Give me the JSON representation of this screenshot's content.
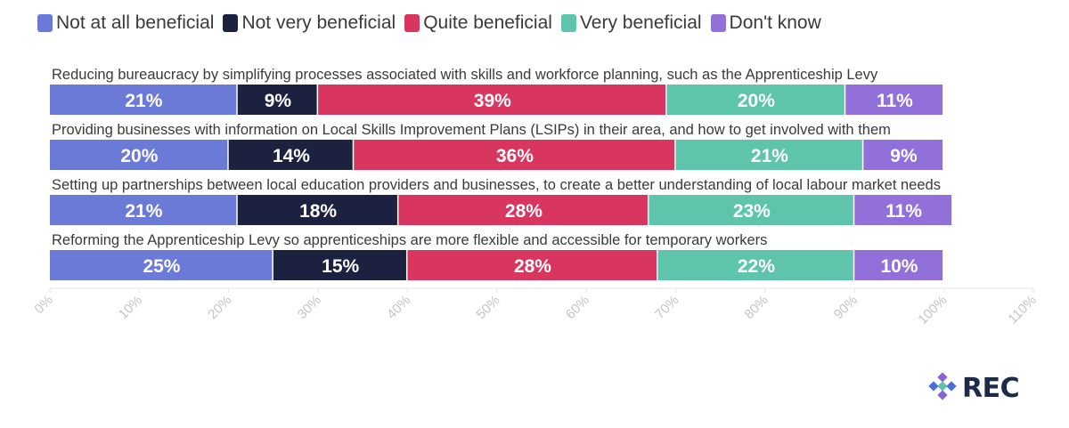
{
  "chart_data": {
    "type": "bar",
    "orientation": "horizontal",
    "stacked": true,
    "categories": [
      "Reducing bureaucracy by simplifying processes associated with skills and workforce planning, such as the Apprenticeship Levy",
      "Providing businesses with information on Local Skills Improvement Plans (LSIPs) in their area, and how to get involved with them",
      "Setting up partnerships between local education providers and businesses, to create a better understanding of local labour market needs",
      "Reforming the Apprenticeship Levy so apprenticeships are more flexible and accessible for temporary workers"
    ],
    "series": [
      {
        "name": "Not at all beneficial",
        "color": "#6b7ad6",
        "values": [
          21,
          20,
          21,
          25
        ]
      },
      {
        "name": "Not very beneficial",
        "color": "#1c2140",
        "values": [
          9,
          14,
          18,
          15
        ]
      },
      {
        "name": "Quite beneficial",
        "color": "#d9365f",
        "values": [
          39,
          36,
          28,
          28
        ]
      },
      {
        "name": "Very beneficial",
        "color": "#5ec4ac",
        "values": [
          20,
          21,
          23,
          22
        ]
      },
      {
        "name": "Don't know",
        "color": "#9270da",
        "values": [
          11,
          9,
          11,
          10
        ]
      }
    ],
    "xlim": [
      0,
      110
    ],
    "x_ticks": [
      "0%",
      "10%",
      "20%",
      "30%",
      "40%",
      "50%",
      "60%",
      "70%",
      "80%",
      "90%",
      "100%",
      "110%"
    ],
    "legend_position": "top-left",
    "grid": false
  },
  "logo": {
    "text": "REC"
  }
}
